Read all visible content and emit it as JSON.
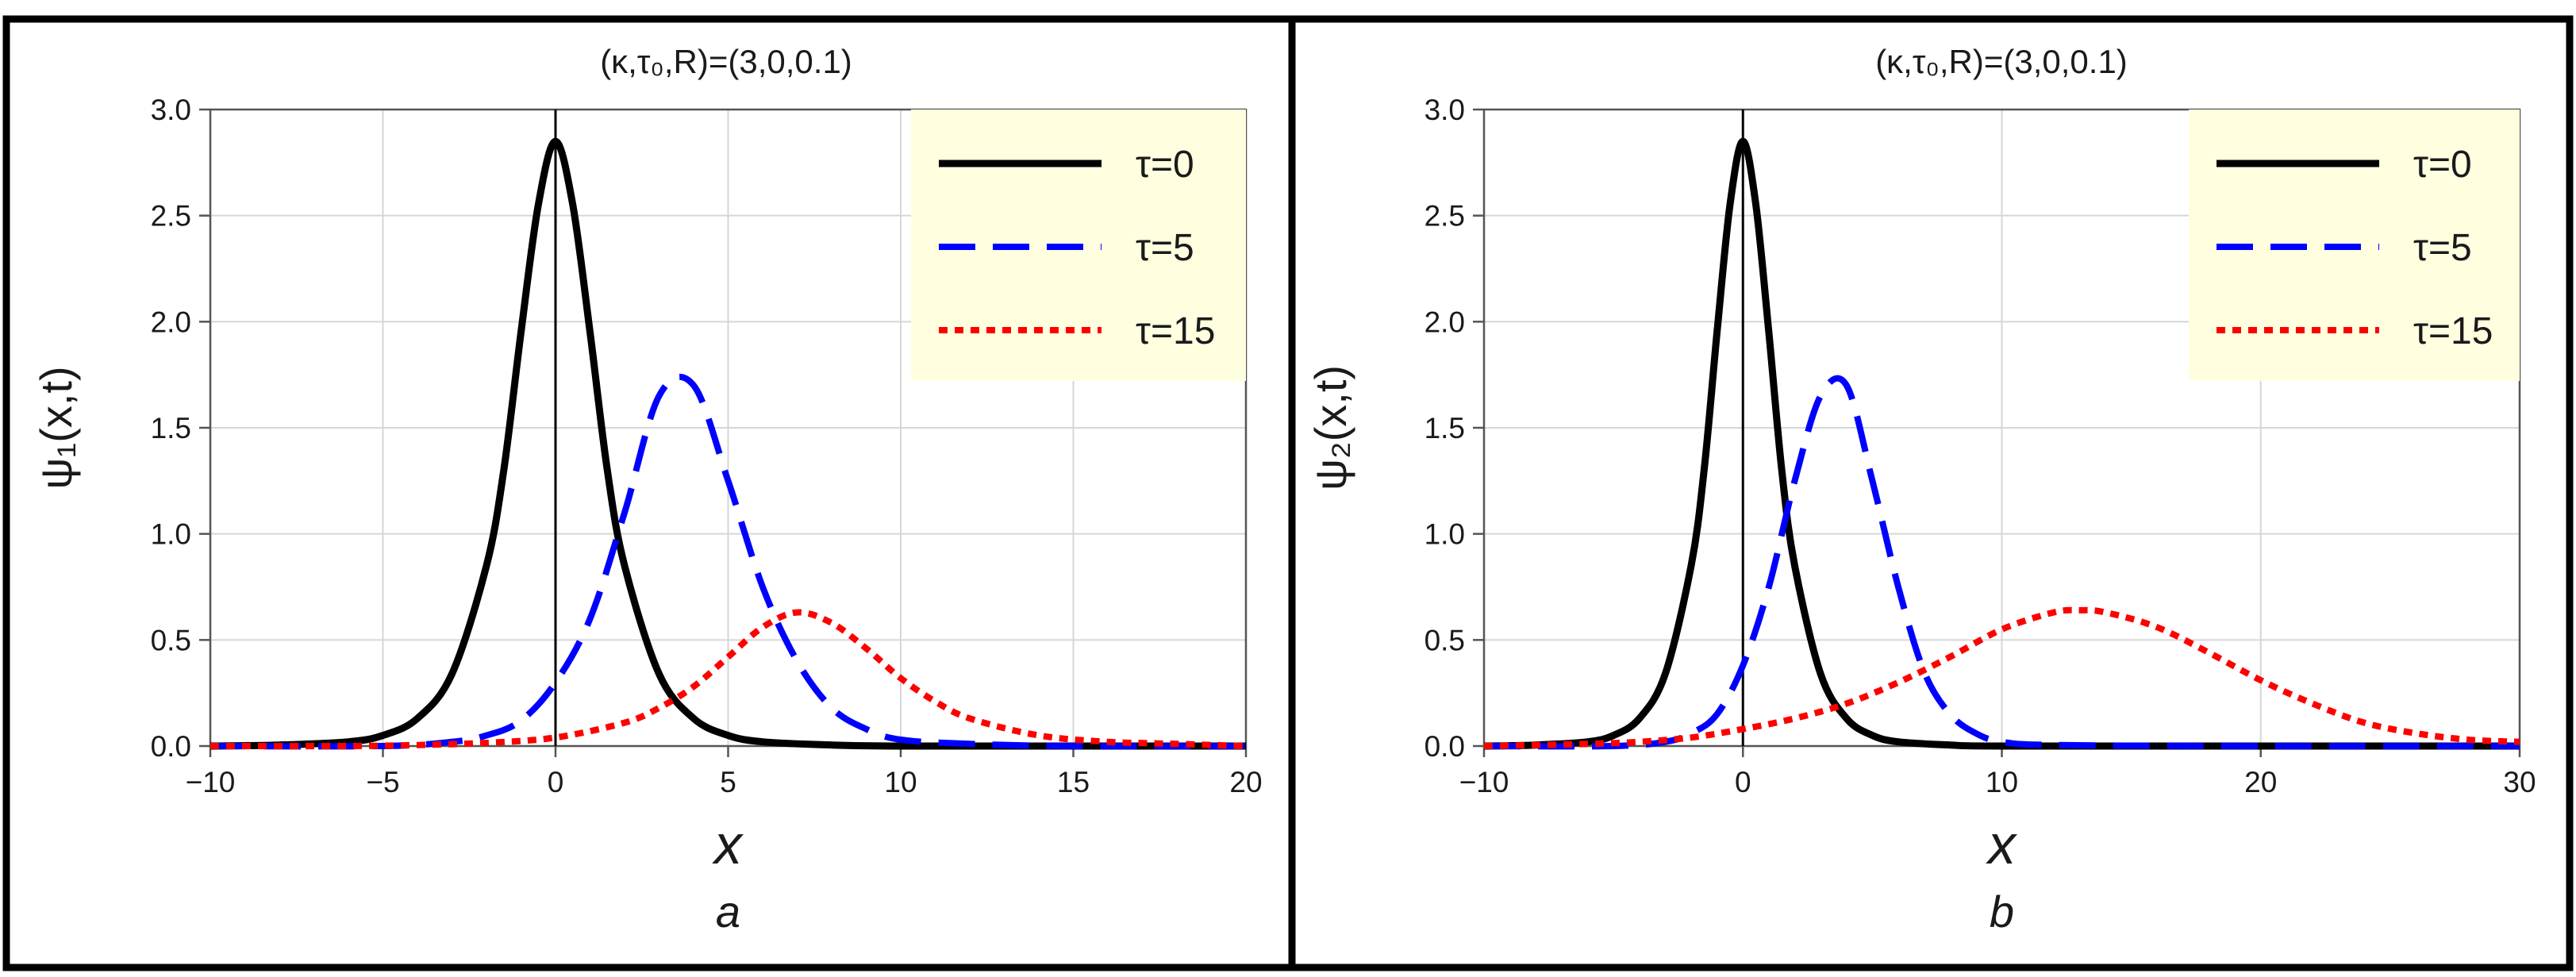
{
  "colors": {
    "frame": "#000000",
    "grid": "#d6d6d6",
    "axis": "#555555",
    "legend_bg": "#ffffe0",
    "legend_border": "#d9d9b0"
  },
  "chart_data": [
    {
      "type": "line",
      "panel_tag": "a",
      "title": "(κ,τ₀,R)=(3,0,0.1)",
      "xlabel": "x",
      "ylabel": "ψ₁(x,t)",
      "xlim": [
        -10,
        20
      ],
      "ylim": [
        0,
        3.0
      ],
      "xticks": [
        -10,
        -5,
        0,
        5,
        10,
        15,
        20
      ],
      "yticks": [
        0.0,
        0.5,
        1.0,
        1.5,
        2.0,
        2.5,
        3.0
      ],
      "ytick_labels": [
        "0.0",
        "0.5",
        "1.0",
        "1.5",
        "2.0",
        "2.5",
        "3.0"
      ],
      "grid": true,
      "legend_position": "top-right",
      "series": [
        {
          "name": "τ=0",
          "style": "solid",
          "color": "#000000",
          "x": [
            -10,
            -8,
            -6,
            -5,
            -4,
            -3,
            -2,
            -1.5,
            -1,
            -0.5,
            0,
            0.5,
            1,
            1.5,
            2,
            3,
            4,
            5,
            6,
            8,
            10,
            15,
            20
          ],
          "y": [
            0.0,
            0.005,
            0.02,
            0.05,
            0.13,
            0.34,
            0.85,
            1.3,
            1.95,
            2.55,
            2.85,
            2.55,
            1.95,
            1.3,
            0.85,
            0.34,
            0.13,
            0.05,
            0.02,
            0.005,
            0.0,
            0.0,
            0.0
          ]
        },
        {
          "name": "τ=5",
          "style": "dashed",
          "color": "#0000ff",
          "x": [
            -10,
            -5,
            -3,
            -2,
            -1,
            0,
            1,
            2,
            3,
            4,
            5,
            6,
            7,
            8,
            9,
            10,
            12,
            15,
            20
          ],
          "y": [
            0.0,
            0.0,
            0.02,
            0.05,
            0.12,
            0.3,
            0.6,
            1.1,
            1.65,
            1.7,
            1.25,
            0.75,
            0.4,
            0.18,
            0.08,
            0.03,
            0.01,
            0.0,
            0.0
          ]
        },
        {
          "name": "τ=15",
          "style": "dotted",
          "color": "#ff0000",
          "x": [
            -10,
            -6,
            -4,
            -2,
            0,
            2,
            3,
            4,
            5,
            6,
            7,
            8,
            9,
            10,
            11,
            12,
            14,
            16,
            18,
            20
          ],
          "y": [
            0.0,
            0.0,
            0.005,
            0.015,
            0.04,
            0.11,
            0.18,
            0.28,
            0.42,
            0.56,
            0.63,
            0.58,
            0.46,
            0.32,
            0.21,
            0.13,
            0.05,
            0.02,
            0.01,
            0.0
          ]
        }
      ]
    },
    {
      "type": "line",
      "panel_tag": "b",
      "title": "(κ,τ₀,R)=(3,0,0.1)",
      "xlabel": "x",
      "ylabel": "ψ₂(x,t)",
      "xlim": [
        -10,
        30
      ],
      "ylim": [
        0,
        3.0
      ],
      "xticks": [
        -10,
        0,
        10,
        20,
        30
      ],
      "yticks": [
        0.0,
        0.5,
        1.0,
        1.5,
        2.0,
        2.5,
        3.0
      ],
      "ytick_labels": [
        "0.0",
        "0.5",
        "1.0",
        "1.5",
        "2.0",
        "2.5",
        "3.0"
      ],
      "grid": true,
      "legend_position": "top-right",
      "series": [
        {
          "name": "τ=0",
          "style": "solid",
          "color": "#000000",
          "x": [
            -10,
            -8,
            -6,
            -5,
            -4,
            -3,
            -2,
            -1.5,
            -1,
            -0.5,
            0,
            0.5,
            1,
            1.5,
            2,
            3,
            4,
            5,
            6,
            8,
            10,
            20,
            30
          ],
          "y": [
            0.0,
            0.005,
            0.02,
            0.05,
            0.13,
            0.34,
            0.85,
            1.3,
            1.95,
            2.55,
            2.85,
            2.55,
            1.95,
            1.3,
            0.85,
            0.34,
            0.13,
            0.05,
            0.02,
            0.005,
            0.0,
            0.0,
            0.0
          ]
        },
        {
          "name": "τ=5",
          "style": "dashed",
          "color": "#0000ff",
          "x": [
            -10,
            -5,
            -3,
            -2,
            -1,
            0,
            1,
            2,
            3,
            4,
            5,
            6,
            7,
            8,
            9,
            10,
            12,
            20,
            30
          ],
          "y": [
            0.0,
            0.0,
            0.02,
            0.06,
            0.15,
            0.38,
            0.75,
            1.25,
            1.65,
            1.7,
            1.25,
            0.75,
            0.35,
            0.15,
            0.06,
            0.02,
            0.005,
            0.0,
            0.0
          ]
        },
        {
          "name": "τ=15",
          "style": "dotted",
          "color": "#ff0000",
          "x": [
            -10,
            -6,
            -4,
            -2,
            0,
            2,
            4,
            6,
            8,
            10,
            12,
            13,
            14,
            16,
            18,
            20,
            22,
            24,
            26,
            28,
            30
          ],
          "y": [
            0.0,
            0.01,
            0.02,
            0.04,
            0.08,
            0.13,
            0.2,
            0.3,
            0.42,
            0.55,
            0.63,
            0.64,
            0.63,
            0.56,
            0.44,
            0.31,
            0.2,
            0.11,
            0.06,
            0.03,
            0.02
          ]
        }
      ]
    }
  ]
}
